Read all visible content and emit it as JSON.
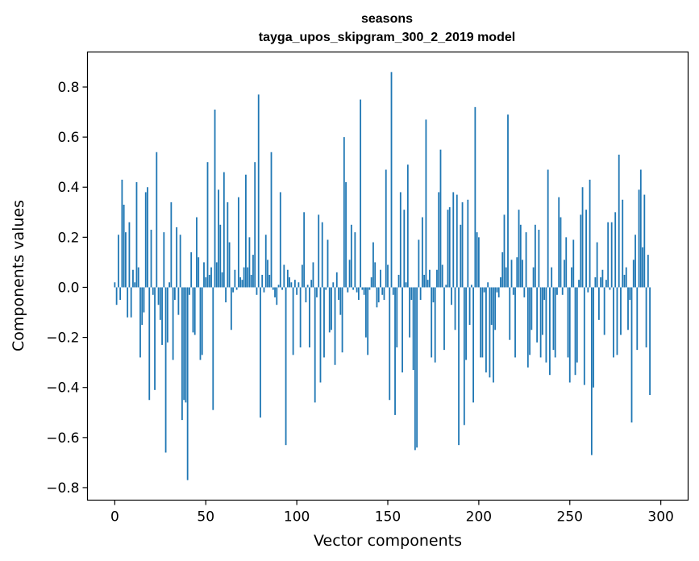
{
  "chart_data": {
    "type": "bar",
    "title": "seasons",
    "subtitle": "tayga_upos_skipgram_300_2_2019 model",
    "xlabel": "Vector components",
    "ylabel": "Components values",
    "xlim": [
      -15,
      315
    ],
    "ylim": [
      -0.85,
      0.94
    ],
    "xticks": [
      0,
      50,
      100,
      150,
      200,
      250,
      300
    ],
    "yticks": [
      -0.8,
      -0.6,
      -0.4,
      -0.2,
      0.0,
      0.2,
      0.4,
      0.6,
      0.8
    ],
    "ytick_labels": [
      "−0.8",
      "−0.6",
      "−0.4",
      "−0.2",
      "0.0",
      "0.2",
      "0.4",
      "0.6",
      "0.8"
    ],
    "xtick_labels": [
      "0",
      "50",
      "100",
      "150",
      "200",
      "250",
      "300"
    ],
    "bar_color": "#1f77b4",
    "values": [
      0.02,
      -0.07,
      0.21,
      -0.05,
      0.43,
      0.33,
      0.22,
      -0.12,
      0.26,
      -0.12,
      0.07,
      0.02,
      0.42,
      0.08,
      -0.28,
      -0.15,
      -0.1,
      0.38,
      0.4,
      -0.45,
      0.23,
      -0.03,
      -0.41,
      0.54,
      -0.07,
      -0.13,
      -0.23,
      0.22,
      -0.66,
      -0.22,
      0.02,
      0.34,
      -0.29,
      -0.05,
      0.24,
      -0.11,
      0.21,
      -0.53,
      -0.45,
      -0.46,
      -0.77,
      -0.03,
      0.14,
      -0.18,
      -0.19,
      0.28,
      0.12,
      -0.29,
      -0.27,
      0.1,
      0.04,
      0.5,
      0.05,
      0.08,
      -0.49,
      0.71,
      0.1,
      0.39,
      0.25,
      0.06,
      0.46,
      -0.06,
      0.34,
      0.18,
      -0.17,
      -0.02,
      0.07,
      -0.01,
      0.36,
      0.04,
      0.03,
      0.08,
      0.45,
      0.08,
      0.2,
      0.05,
      0.13,
      0.5,
      -0.03,
      0.77,
      -0.52,
      0.05,
      -0.02,
      0.21,
      0.11,
      0.05,
      0.54,
      -0.01,
      -0.04,
      -0.07,
      0.01,
      0.38,
      -0.01,
      0.09,
      -0.63,
      0.07,
      0.04,
      0.02,
      -0.27,
      0.03,
      -0.03,
      0.02,
      -0.24,
      0.09,
      0.3,
      -0.06,
      0.01,
      -0.24,
      0.03,
      0.1,
      -0.46,
      -0.04,
      0.29,
      -0.38,
      0.26,
      -0.28,
      -0.01,
      0.19,
      -0.18,
      -0.17,
      0.02,
      -0.31,
      0.06,
      -0.05,
      -0.11,
      -0.26,
      0.6,
      0.42,
      -0.02,
      0.11,
      0.25,
      -0.01,
      0.22,
      -0.02,
      -0.05,
      0.75,
      -0.01,
      -0.03,
      -0.2,
      -0.27,
      -0.01,
      0.04,
      0.18,
      0.1,
      -0.08,
      -0.06,
      0.07,
      -0.03,
      -0.05,
      0.47,
      0.09,
      -0.45,
      0.86,
      -0.03,
      -0.51,
      -0.24,
      0.05,
      0.38,
      -0.34,
      0.31,
      0.02,
      0.49,
      -0.2,
      -0.05,
      -0.33,
      -0.65,
      -0.64,
      0.19,
      -0.05,
      0.28,
      0.05,
      0.67,
      0.03,
      0.07,
      -0.28,
      -0.06,
      -0.3,
      0.07,
      0.38,
      0.55,
      0.09,
      -0.25,
      0.01,
      0.31,
      0.32,
      -0.07,
      0.38,
      -0.17,
      0.37,
      -0.63,
      0.25,
      0.34,
      -0.55,
      -0.29,
      0.35,
      -0.15,
      0.01,
      -0.46,
      0.72,
      0.22,
      0.2,
      -0.28,
      -0.28,
      -0.02,
      -0.34,
      0.02,
      -0.36,
      -0.15,
      -0.38,
      -0.17,
      -0.02,
      -0.04,
      0.04,
      0.14,
      0.29,
      0.08,
      0.69,
      -0.21,
      0.11,
      -0.03,
      -0.28,
      0.12,
      0.31,
      0.25,
      0.11,
      -0.04,
      0.22,
      -0.32,
      -0.27,
      -0.17,
      0.08,
      0.25,
      -0.22,
      0.23,
      -0.28,
      -0.19,
      -0.05,
      -0.3,
      0.47,
      -0.35,
      0.08,
      -0.25,
      -0.28,
      -0.03,
      0.36,
      0.28,
      -0.03,
      0.11,
      0.2,
      -0.28,
      -0.38,
      0.08,
      0.19,
      -0.35,
      -0.3,
      0.03,
      0.29,
      0.4,
      -0.39,
      0.31,
      -0.02,
      0.43,
      -0.67,
      -0.4,
      0.04,
      0.18,
      -0.13,
      0.04,
      0.07,
      -0.19,
      0.03,
      0.26,
      -0.01,
      0.26,
      -0.28,
      0.3,
      -0.27,
      0.53,
      -0.19,
      0.35,
      0.05,
      0.08,
      -0.17,
      -0.05,
      -0.54,
      0.11,
      0.21,
      -0.25,
      0.39,
      0.47,
      0.16,
      0.37,
      -0.24,
      0.13,
      -0.43
    ]
  }
}
